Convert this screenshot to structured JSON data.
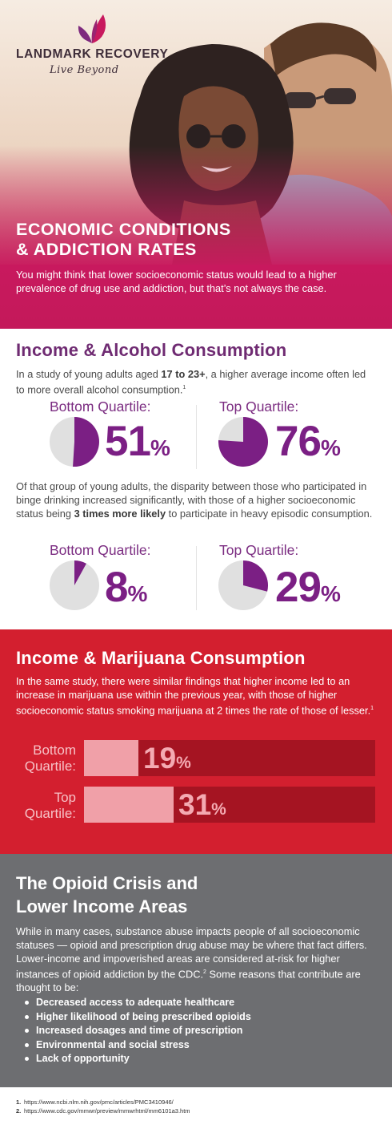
{
  "brand": {
    "name": "LANDMARK RECOVERY",
    "tagline": "Live Beyond"
  },
  "colors": {
    "magenta": "#c8195e",
    "purple": "#7b1f84",
    "red": "#d31f2f",
    "dark_red": "#a51422",
    "pink": "#f0a0a8",
    "gray": "#6d6e71",
    "pie_gray": "#e0e0e0"
  },
  "hero": {
    "title_line1": "ECONOMIC CONDITIONS",
    "title_line2": "& ADDICTION RATES",
    "intro": "You might think that lower socioeconomic status would lead to a higher prevalence of drug use and addiction, but that’s not always the case."
  },
  "alcohol": {
    "title": "Income & Alcohol Consumption",
    "text_before": "In a study of young adults aged ",
    "text_bold": "17 to 23+",
    "text_after": ", a higher average income often led to more overall alcohol consumption.",
    "text_footnote": "1",
    "text2_before": "Of that group of young adults, the disparity between those who participated in binge drinking increased significantly, with those of a higher socioeconomic status being ",
    "text2_bold": "3 times more likely",
    "text2_after": " to participate in heavy episodic consumption.",
    "stats_row1": [
      {
        "label": "Bottom Quartile:",
        "value": 51,
        "number": "51",
        "unit": "%"
      },
      {
        "label": "Top Quartile:",
        "value": 76,
        "number": "76",
        "unit": "%"
      }
    ],
    "stats_row2": [
      {
        "label": "Bottom Quartile:",
        "value": 8,
        "number": "8",
        "unit": "%"
      },
      {
        "label": "Top Quartile:",
        "value": 29,
        "number": "29",
        "unit": "%"
      }
    ]
  },
  "marijuana": {
    "title": "Income & Marijuana Consumption",
    "text": "In the same study, there were similar findings that higher income led to an increase in marijuana use within the previous year, with those of higher socioeconomic status smoking marijuana at 2 times the rate of those of lesser.",
    "text_footnote": "1",
    "bars": [
      {
        "label_line1": "Bottom",
        "label_line2": "Quartile:",
        "value": 19,
        "number": "19",
        "unit": "%"
      },
      {
        "label_line1": "Top",
        "label_line2": "Quartile:",
        "value": 31,
        "number": "31",
        "unit": "%"
      }
    ]
  },
  "opioid": {
    "title_line1": "The Opioid Crisis and",
    "title_line2": "Lower Income Areas",
    "text": "While in many cases, substance abuse impacts people of all socioeconomic statuses — opioid and prescription drug abuse may be where that fact differs. Lower-income and impoverished areas are considered at-risk for higher instances of opioid addiction by the CDC.",
    "text_footnote": "2",
    "text_after": " Some reasons that contribute are thought to be:",
    "bullets": [
      "Decreased access to adequate healthcare",
      "Higher likelihood of being prescribed opioids",
      "Increased dosages and time of prescription",
      "Environmental and social stress",
      "Lack of opportunity"
    ]
  },
  "footnotes": [
    {
      "num": "1.",
      "url": "https://www.ncbi.nlm.nih.gov/pmc/articles/PMC3410946/"
    },
    {
      "num": "2.",
      "url": "https://www.cdc.gov/mmwr/preview/mmwrhtml/mm6101a3.htm"
    }
  ]
}
